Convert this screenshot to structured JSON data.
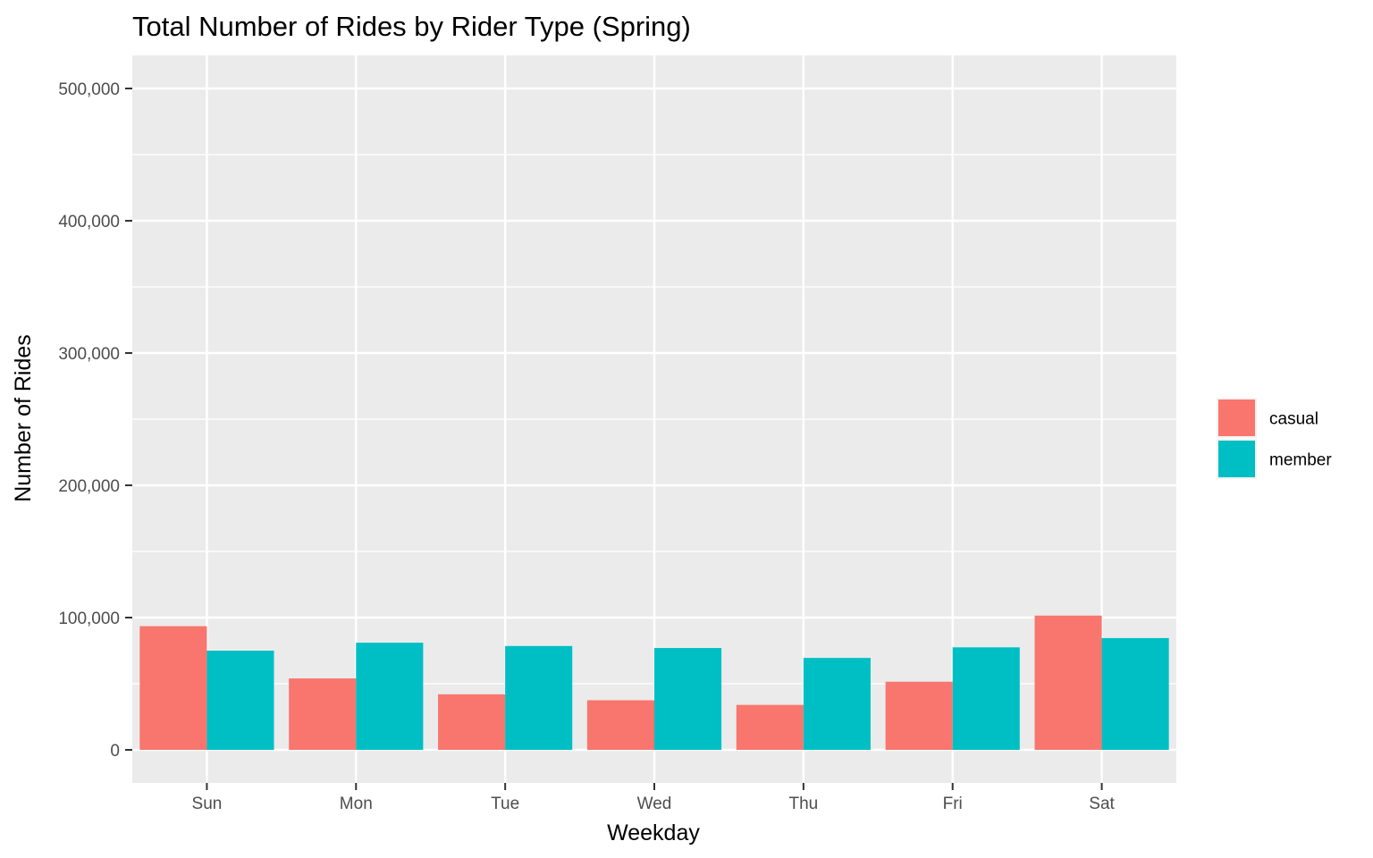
{
  "chart_data": {
    "type": "bar",
    "title": "Total Number of Rides by Rider Type (Spring)",
    "xlabel": "Weekday",
    "ylabel": "Number of Rides",
    "categories": [
      "Sun",
      "Mon",
      "Tue",
      "Wed",
      "Thu",
      "Fri",
      "Sat"
    ],
    "series": [
      {
        "name": "casual",
        "color": "#F8766D",
        "values": [
          93500,
          54000,
          42000,
          37500,
          34000,
          51500,
          101500
        ]
      },
      {
        "name": "member",
        "color": "#00BFC4",
        "values": [
          75000,
          81000,
          78500,
          77000,
          69500,
          77500,
          84500
        ]
      }
    ],
    "ylim": [
      -25000,
      525000
    ],
    "y_ticks": [
      0,
      100000,
      200000,
      300000,
      400000,
      500000
    ],
    "y_tick_labels": [
      "0",
      "100,000",
      "200,000",
      "300,000",
      "400,000",
      "500,000"
    ],
    "grid": true,
    "legend_position": "right",
    "panel_color": "#EBEBEB",
    "grid_color": "#FFFFFF"
  }
}
